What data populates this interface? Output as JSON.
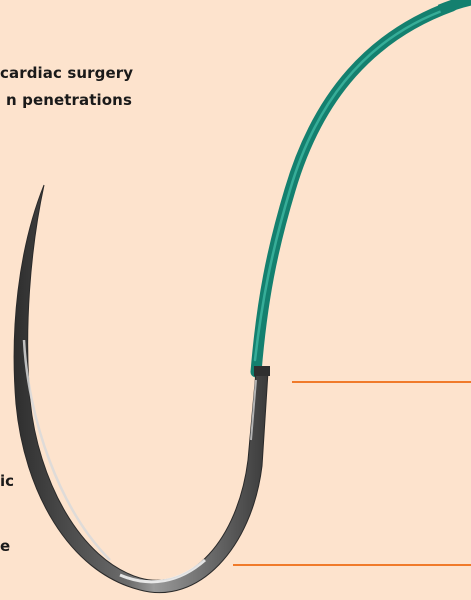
{
  "copy": {
    "headline_line1": "cardiac surgery",
    "headline_line2": "n penetrations",
    "side_line1": "ic",
    "side_line2": "",
    "side_line3": "e"
  },
  "illustration": {
    "subject": "surgical-needle-with-suture",
    "colors": {
      "background": "#fde3cd",
      "needle": "#4a4a4a",
      "needle_highlight": "#e6e6e6",
      "suture": "#1a8f7c",
      "suture_highlight": "#42c0aa",
      "callout_lines": "#f07a2a"
    }
  }
}
